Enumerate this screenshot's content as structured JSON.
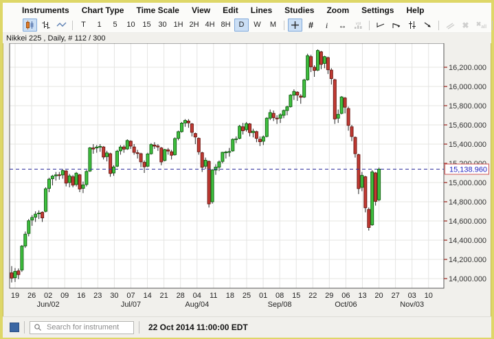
{
  "menu": {
    "items": [
      "Instruments",
      "Chart Type",
      "Time Scale",
      "View",
      "Edit",
      "Lines",
      "Studies",
      "Zoom",
      "Settings",
      "Help"
    ]
  },
  "toolbar": {
    "chart_types": [
      {
        "name": "candlestick-chart-icon",
        "selected": true,
        "disabled": false
      },
      {
        "name": "ohlc-bars-icon",
        "selected": false,
        "disabled": false
      },
      {
        "name": "line-chart-icon",
        "selected": false,
        "disabled": false
      }
    ],
    "timeframes": {
      "options": [
        "T",
        "1",
        "5",
        "10",
        "15",
        "30",
        "1H",
        "2H",
        "4H",
        "8H",
        "D",
        "W",
        "M"
      ],
      "selected": "D"
    },
    "view_tools": [
      {
        "name": "crosshair-icon",
        "selected": true,
        "disabled": false
      },
      {
        "name": "grid-icon",
        "selected": false,
        "disabled": false
      },
      {
        "name": "info-icon",
        "selected": false,
        "disabled": false
      },
      {
        "name": "scroll-horizontal-icon",
        "selected": false,
        "disabled": false
      },
      {
        "name": "volume-icon",
        "selected": false,
        "disabled": true
      }
    ],
    "draw_tools": [
      {
        "name": "trendline-icon",
        "selected": false,
        "disabled": false
      },
      {
        "name": "trend-ray-icon",
        "selected": false,
        "disabled": false
      },
      {
        "name": "channel-icon",
        "selected": false,
        "disabled": false
      },
      {
        "name": "trend-arrow-icon",
        "selected": false,
        "disabled": false
      }
    ],
    "edit_tools": [
      {
        "name": "parallel-lines-icon",
        "selected": false,
        "disabled": true
      },
      {
        "name": "delete-icon",
        "selected": false,
        "disabled": true
      },
      {
        "name": "delete-all-icon",
        "selected": false,
        "disabled": true,
        "label": "all"
      }
    ],
    "actions": [
      {
        "name": "print-icon",
        "selected": false,
        "disabled": false
      },
      {
        "name": "pin-icon",
        "selected": true,
        "disabled": false
      },
      {
        "name": "overflow-icon",
        "selected": false,
        "disabled": false
      }
    ]
  },
  "chart": {
    "title": "Nikkei 225 , Daily, # 112 / 300"
  },
  "chart_data": {
    "type": "candlestick",
    "instrument": "Nikkei 225",
    "timeframe": "Daily",
    "bar_counter": "# 112 / 300",
    "last_price_label": "15,138.960",
    "last_price": 15138.96,
    "price_axis": {
      "labels": [
        "16,200.000",
        "16,000.000",
        "15,800.000",
        "15,600.000",
        "15,400.000",
        "15,200.000",
        "15,000.000",
        "14,800.000",
        "14,600.000",
        "14,400.000",
        "14,200.000",
        "14,000.000"
      ],
      "values": [
        16200,
        16000,
        15800,
        15600,
        15400,
        15200,
        15000,
        14800,
        14600,
        14400,
        14200,
        14000
      ],
      "step": 200
    },
    "x_axis": {
      "week_ticks": [
        "19",
        "26",
        "02",
        "09",
        "16",
        "23",
        "30",
        "07",
        "14",
        "21",
        "28",
        "04",
        "11",
        "18",
        "25",
        "01",
        "08",
        "15",
        "22",
        "29",
        "06",
        "13",
        "20",
        "27",
        "03",
        "10"
      ],
      "month_labels": [
        {
          "text": "Jun/02",
          "tick": 2
        },
        {
          "text": "Jul/07",
          "tick": 7
        },
        {
          "text": "Aug/04",
          "tick": 11
        },
        {
          "text": "Sep/08",
          "tick": 16
        },
        {
          "text": "Oct/06",
          "tick": 20
        },
        {
          "text": "Nov/03",
          "tick": 24
        }
      ]
    },
    "candles": [
      [
        14060,
        14130,
        13960,
        14006
      ],
      [
        14010,
        14110,
        13965,
        14075
      ],
      [
        14080,
        14105,
        13995,
        14042
      ],
      [
        14090,
        14350,
        14070,
        14338
      ],
      [
        14340,
        14490,
        14320,
        14462
      ],
      [
        14470,
        14620,
        14440,
        14602
      ],
      [
        14610,
        14660,
        14550,
        14636
      ],
      [
        14640,
        14700,
        14590,
        14671
      ],
      [
        14680,
        14710,
        14620,
        14682
      ],
      [
        14690,
        14700,
        14590,
        14632
      ],
      [
        14700,
        14950,
        14690,
        14935
      ],
      [
        14940,
        15050,
        14900,
        15034
      ],
      [
        15040,
        15080,
        14970,
        15067
      ],
      [
        15070,
        15110,
        15020,
        15079
      ],
      [
        15080,
        15110,
        15030,
        15077
      ],
      [
        15080,
        15140,
        15040,
        15124
      ],
      [
        15120,
        15130,
        14960,
        14994
      ],
      [
        15000,
        15090,
        14950,
        15069
      ],
      [
        15060,
        15080,
        14950,
        14973
      ],
      [
        14980,
        15110,
        14960,
        15097
      ],
      [
        15080,
        15090,
        14900,
        14933
      ],
      [
        14940,
        15010,
        14890,
        14975
      ],
      [
        14980,
        15130,
        14960,
        15115
      ],
      [
        15120,
        15370,
        15110,
        15361
      ],
      [
        15360,
        15400,
        15300,
        15349
      ],
      [
        15360,
        15390,
        15310,
        15369
      ],
      [
        15370,
        15400,
        15320,
        15376
      ],
      [
        15370,
        15380,
        15240,
        15266
      ],
      [
        15270,
        15330,
        15220,
        15308
      ],
      [
        15300,
        15310,
        15060,
        15095
      ],
      [
        15100,
        15180,
        15070,
        15162
      ],
      [
        15170,
        15340,
        15160,
        15326
      ],
      [
        15330,
        15390,
        15290,
        15369
      ],
      [
        15370,
        15390,
        15310,
        15348
      ],
      [
        15350,
        15450,
        15340,
        15437
      ],
      [
        15430,
        15440,
        15350,
        15379
      ],
      [
        15370,
        15400,
        15290,
        15314
      ],
      [
        15310,
        15340,
        15250,
        15302
      ],
      [
        15300,
        15310,
        15160,
        15216
      ],
      [
        15210,
        15230,
        15100,
        15164
      ],
      [
        15170,
        15310,
        15160,
        15297
      ],
      [
        15300,
        15410,
        15290,
        15395
      ],
      [
        15390,
        15420,
        15350,
        15379
      ],
      [
        15380,
        15400,
        15330,
        15370
      ],
      [
        15360,
        15370,
        15180,
        15215
      ],
      [
        15230,
        15350,
        15220,
        15343
      ],
      [
        15340,
        15360,
        15290,
        15328
      ],
      [
        15320,
        15340,
        15240,
        15284
      ],
      [
        15290,
        15470,
        15280,
        15457
      ],
      [
        15460,
        15540,
        15440,
        15529
      ],
      [
        15530,
        15630,
        15520,
        15618
      ],
      [
        15620,
        15660,
        15580,
        15646
      ],
      [
        15640,
        15660,
        15570,
        15621
      ],
      [
        15610,
        15620,
        15480,
        15523
      ],
      [
        15510,
        15520,
        15400,
        15474
      ],
      [
        15460,
        15470,
        15290,
        15320
      ],
      [
        15310,
        15320,
        15110,
        15159
      ],
      [
        15170,
        15260,
        15140,
        15232
      ],
      [
        15220,
        15230,
        14740,
        14778
      ],
      [
        14800,
        15140,
        14780,
        15130
      ],
      [
        15130,
        15190,
        15080,
        15161
      ],
      [
        15160,
        15230,
        15120,
        15214
      ],
      [
        15220,
        15320,
        15200,
        15314
      ],
      [
        15310,
        15330,
        15250,
        15318
      ],
      [
        15320,
        15360,
        15270,
        15322
      ],
      [
        15330,
        15460,
        15320,
        15449
      ],
      [
        15450,
        15480,
        15410,
        15454
      ],
      [
        15460,
        15600,
        15450,
        15586
      ],
      [
        15580,
        15620,
        15500,
        15539
      ],
      [
        15550,
        15630,
        15530,
        15613
      ],
      [
        15610,
        15620,
        15480,
        15521
      ],
      [
        15520,
        15560,
        15470,
        15534
      ],
      [
        15530,
        15540,
        15420,
        15460
      ],
      [
        15450,
        15480,
        15380,
        15425
      ],
      [
        15430,
        15490,
        15390,
        15476
      ],
      [
        15480,
        15680,
        15470,
        15669
      ],
      [
        15670,
        15760,
        15650,
        15728
      ],
      [
        15720,
        15750,
        15640,
        15676
      ],
      [
        15670,
        15700,
        15610,
        15668
      ],
      [
        15670,
        15720,
        15620,
        15705
      ],
      [
        15700,
        15760,
        15670,
        15749
      ],
      [
        15750,
        15800,
        15700,
        15788
      ],
      [
        15790,
        15920,
        15780,
        15909
      ],
      [
        15910,
        15970,
        15860,
        15948
      ],
      [
        15940,
        15950,
        15850,
        15911
      ],
      [
        15900,
        15920,
        15820,
        15888
      ],
      [
        15890,
        16080,
        15880,
        16067
      ],
      [
        16070,
        16340,
        16060,
        16321
      ],
      [
        16310,
        16330,
        16150,
        16205
      ],
      [
        16200,
        16220,
        16100,
        16167
      ],
      [
        16170,
        16386,
        16160,
        16374
      ],
      [
        16360,
        16370,
        16180,
        16230
      ],
      [
        16240,
        16320,
        16190,
        16310
      ],
      [
        16300,
        16310,
        16130,
        16174
      ],
      [
        16170,
        16190,
        16020,
        16082
      ],
      [
        16070,
        16080,
        15610,
        15662
      ],
      [
        15670,
        15760,
        15620,
        15709
      ],
      [
        15720,
        15900,
        15710,
        15891
      ],
      [
        15880,
        15890,
        15720,
        15784
      ],
      [
        15770,
        15790,
        15540,
        15595
      ],
      [
        15580,
        15600,
        15430,
        15479
      ],
      [
        15470,
        15480,
        15260,
        15301
      ],
      [
        15290,
        15300,
        14880,
        14937
      ],
      [
        14950,
        15110,
        14910,
        15074
      ],
      [
        15060,
        15070,
        14690,
        14738
      ],
      [
        14720,
        14740,
        14500,
        14532
      ],
      [
        14560,
        15130,
        14550,
        15111
      ],
      [
        15100,
        15110,
        14760,
        14804
      ],
      [
        14820,
        15155,
        14805,
        15139
      ]
    ]
  },
  "bottom_bar": {
    "search_placeholder": "Search for instrument",
    "timestamp": "22 Oct 2014 11:00:00 EDT"
  },
  "colors": {
    "up_fill": "#3fc13f",
    "up_border": "#156615",
    "down_fill": "#c23a33",
    "down_border": "#6f1b16",
    "wick": "#222222",
    "grid": "#e4e4e2",
    "frame": "#555555",
    "dashed_line": "#2f2f9d",
    "price_box_border": "#d05050",
    "price_text": "#2525c0",
    "axis_tick": "#a33c35",
    "axis_text": "#333333",
    "selected_bg": "#cbdff5",
    "selected_border": "#7fa8d9"
  }
}
